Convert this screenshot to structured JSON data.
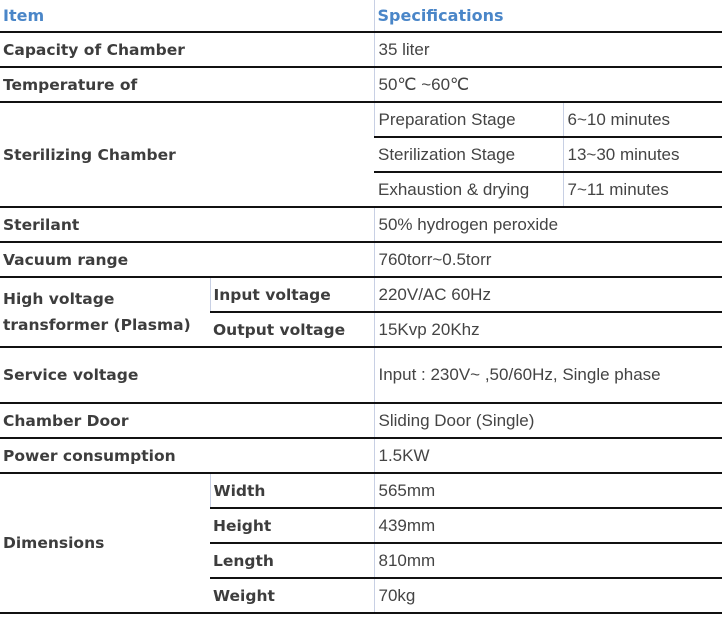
{
  "header": {
    "item": "Item",
    "specifications": "Specifications"
  },
  "colors": {
    "header_text": "#4a86c8",
    "row_border": "#111111",
    "column_border": "#c8d0e4"
  },
  "rows": {
    "capacity": {
      "label": "Capacity of Chamber",
      "value": "35 liter"
    },
    "temperature": {
      "label": "Temperature of",
      "value": "50℃ ~60℃"
    },
    "sterilizing": {
      "label": "Sterilizing Chamber",
      "stages": [
        {
          "name": "Preparation Stage",
          "value": "6~10 minutes"
        },
        {
          "name": "Sterilization Stage",
          "value": "13~30 minutes"
        },
        {
          "name": "Exhaustion & drying",
          "value": "7~11 minutes"
        }
      ]
    },
    "sterilant": {
      "label": "Sterilant",
      "value": "50% hydrogen peroxide"
    },
    "vacuum": {
      "label": "Vacuum range",
      "value": "760torr~0.5torr"
    },
    "transformer": {
      "label": "High voltage transformer (Plasma)",
      "items": [
        {
          "name": "Input voltage",
          "value": "220V/AC 60Hz"
        },
        {
          "name": "Output voltage",
          "value": "15Kvp 20Khz"
        }
      ]
    },
    "service": {
      "label": "Service voltage",
      "value": "Input : 230V~ ,50/60Hz, Single phase"
    },
    "door": {
      "label": "Chamber Door",
      "value": "Sliding Door (Single)"
    },
    "power": {
      "label": "Power consumption",
      "value": "1.5KW"
    },
    "dimensions": {
      "label": "Dimensions",
      "items": [
        {
          "name": "Width",
          "value": "565mm"
        },
        {
          "name": "Height",
          "value": "439mm"
        },
        {
          "name": "Length",
          "value": "810mm"
        },
        {
          "name": "Weight",
          "value": "70kg"
        }
      ]
    }
  }
}
